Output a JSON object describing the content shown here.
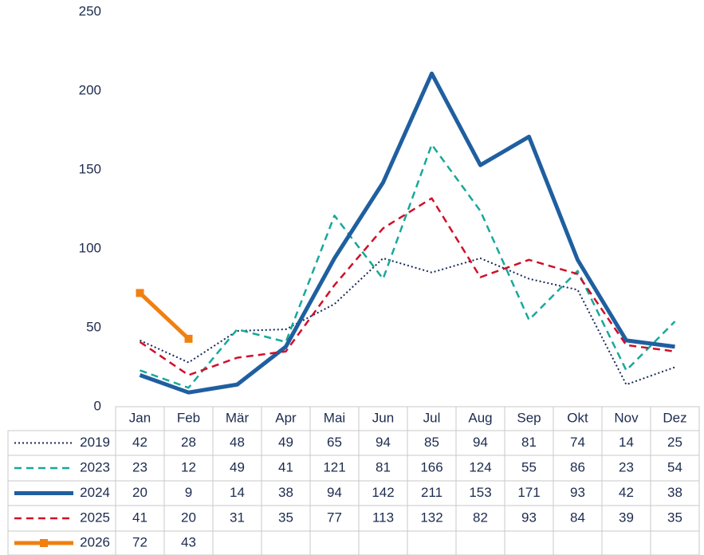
{
  "chart_data": {
    "type": "line",
    "categories": [
      "Jan",
      "Feb",
      "Mär",
      "Apr",
      "Mai",
      "Jun",
      "Jul",
      "Aug",
      "Sep",
      "Okt",
      "Nov",
      "Dez"
    ],
    "series": [
      {
        "name": "2019",
        "color": "#14285a",
        "style": "dotted",
        "values": [
          42,
          28,
          48,
          49,
          65,
          94,
          85,
          94,
          81,
          74,
          14,
          25
        ]
      },
      {
        "name": "2023",
        "color": "#18a89a",
        "style": "dashed",
        "values": [
          23,
          12,
          49,
          41,
          121,
          81,
          166,
          124,
          55,
          86,
          23,
          54
        ]
      },
      {
        "name": "2024",
        "color": "#1f5fa0",
        "style": "thick",
        "values": [
          20,
          9,
          14,
          38,
          94,
          142,
          211,
          153,
          171,
          93,
          42,
          38
        ]
      },
      {
        "name": "2025",
        "color": "#d0102a",
        "style": "dashed",
        "values": [
          41,
          20,
          31,
          35,
          77,
          113,
          132,
          82,
          93,
          84,
          39,
          35
        ]
      },
      {
        "name": "2026",
        "color": "#f08010",
        "style": "thick-marker",
        "values": [
          72,
          43,
          null,
          null,
          null,
          null,
          null,
          null,
          null,
          null,
          null,
          null
        ]
      }
    ],
    "ylim": [
      0,
      250
    ],
    "yticks": [
      0,
      50,
      100,
      150,
      200,
      250
    ],
    "grid": false
  }
}
